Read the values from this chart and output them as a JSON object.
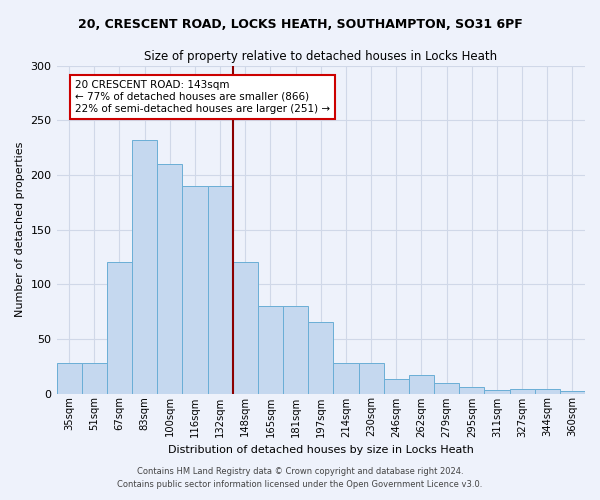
{
  "title_line1": "20, CRESCENT ROAD, LOCKS HEATH, SOUTHAMPTON, SO31 6PF",
  "title_line2": "Size of property relative to detached houses in Locks Heath",
  "xlabel": "Distribution of detached houses by size in Locks Heath",
  "ylabel": "Number of detached properties",
  "categories": [
    "35sqm",
    "51sqm",
    "67sqm",
    "83sqm",
    "100sqm",
    "116sqm",
    "132sqm",
    "148sqm",
    "165sqm",
    "181sqm",
    "197sqm",
    "214sqm",
    "230sqm",
    "246sqm",
    "262sqm",
    "279sqm",
    "295sqm",
    "311sqm",
    "327sqm",
    "344sqm",
    "360sqm"
  ],
  "values": [
    28,
    28,
    120,
    232,
    210,
    190,
    190,
    120,
    80,
    80,
    65,
    28,
    28,
    13,
    17,
    10,
    6,
    3,
    4,
    4,
    2
  ],
  "bar_color": "#c5d8ef",
  "bar_edge_color": "#6aaed6",
  "vline_color": "#8b0000",
  "annotation_text": "20 CRESCENT ROAD: 143sqm\n← 77% of detached houses are smaller (866)\n22% of semi-detached houses are larger (251) →",
  "annotation_box_color": "#ffffff",
  "annotation_box_edge_color": "#cc0000",
  "ylim": [
    0,
    300
  ],
  "yticks": [
    0,
    50,
    100,
    150,
    200,
    250,
    300
  ],
  "grid_color": "#d0d8e8",
  "footer_line1": "Contains HM Land Registry data © Crown copyright and database right 2024.",
  "footer_line2": "Contains public sector information licensed under the Open Government Licence v3.0.",
  "bg_color": "#eef2fb",
  "plot_bg_color": "#eef2fb"
}
